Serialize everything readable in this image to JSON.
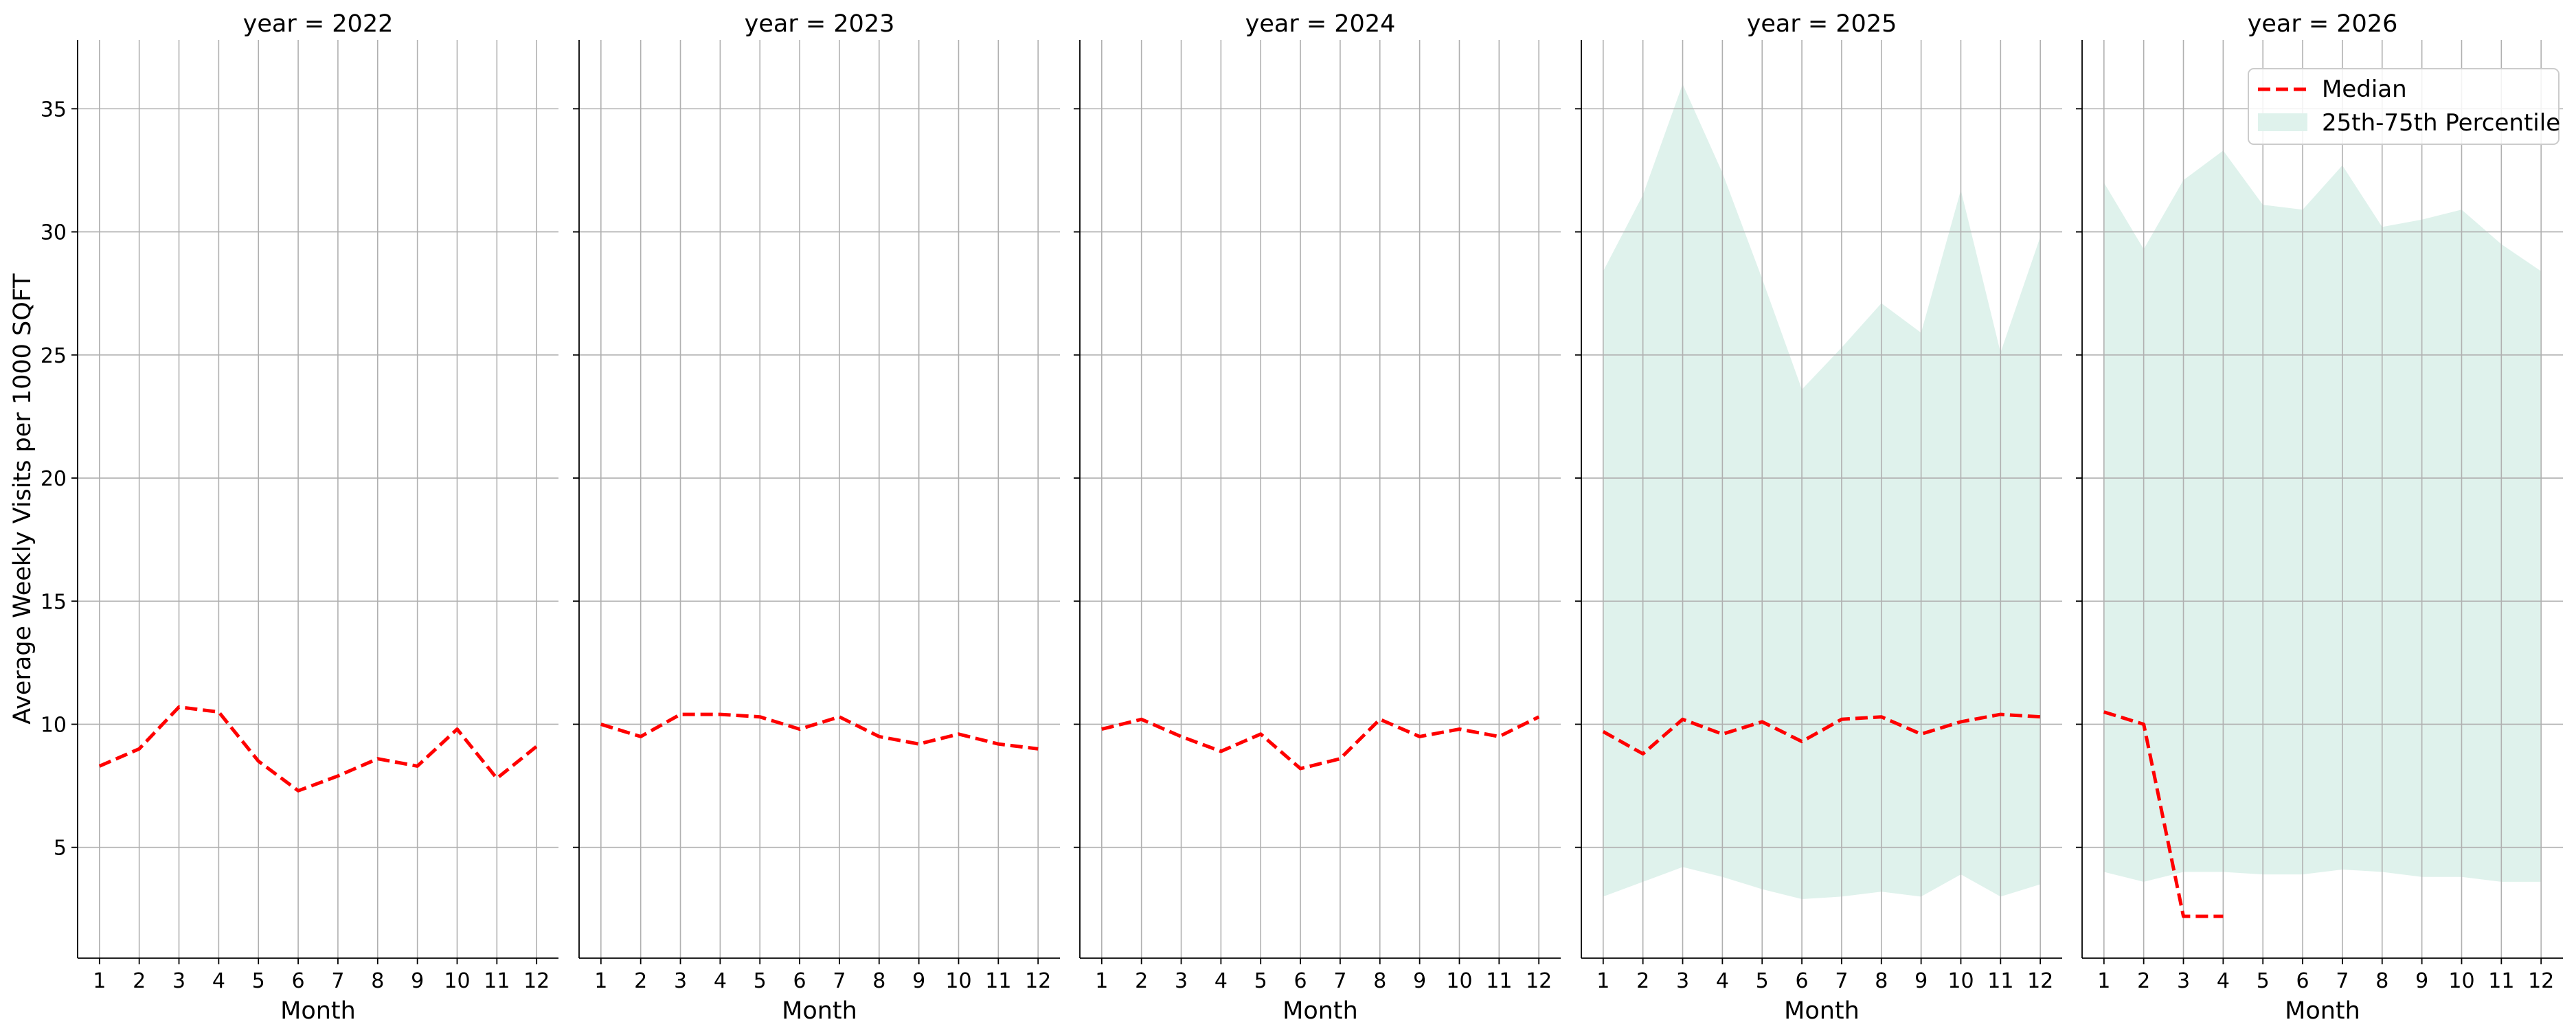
{
  "chart_data": {
    "type": "line",
    "ylabel": "Average Weekly Visits per 1000 SQFT",
    "xlabel": "Month",
    "x": [
      1,
      2,
      3,
      4,
      5,
      6,
      7,
      8,
      9,
      10,
      11,
      12
    ],
    "x_ticks": [
      "1",
      "2",
      "3",
      "4",
      "5",
      "6",
      "7",
      "8",
      "9",
      "10",
      "11",
      "12"
    ],
    "xlim": [
      0.45,
      12.55
    ],
    "ylim": [
      0.5,
      37.8
    ],
    "y_ticks": [
      5,
      10,
      15,
      20,
      25,
      30,
      35
    ],
    "y_tick_labels": [
      "5",
      "10",
      "15",
      "20",
      "25",
      "30",
      "35"
    ],
    "grid": true,
    "legend": {
      "placement": "top-right",
      "entries": [
        "Median",
        "25th-75th Percentile"
      ]
    },
    "colors": {
      "median": "#ff0000",
      "band": "#dff2ec",
      "grid": "#b0b0b0",
      "axis": "#000000"
    },
    "panels": [
      {
        "title": "year = 2022",
        "median": [
          8.3,
          9.0,
          10.7,
          10.5,
          8.5,
          7.3,
          7.9,
          8.6,
          8.3,
          9.8,
          7.8,
          9.1
        ],
        "p25": null,
        "p75": null
      },
      {
        "title": "year = 2023",
        "median": [
          10.0,
          9.5,
          10.4,
          10.4,
          10.3,
          9.8,
          10.3,
          9.5,
          9.2,
          9.6,
          9.2,
          9.0
        ],
        "p25": null,
        "p75": null
      },
      {
        "title": "year = 2024",
        "median": [
          9.8,
          10.2,
          9.5,
          8.9,
          9.6,
          8.2,
          8.6,
          10.2,
          9.5,
          9.8,
          9.5,
          10.3
        ],
        "p25": null,
        "p75": null
      },
      {
        "title": "year = 2025",
        "median": [
          9.7,
          8.8,
          10.2,
          9.6,
          10.1,
          9.3,
          10.2,
          10.3,
          9.6,
          10.1,
          10.4,
          10.3
        ],
        "p25": [
          3.0,
          3.6,
          4.2,
          3.8,
          3.3,
          2.9,
          3.0,
          3.2,
          3.0,
          3.9,
          3.0,
          3.5
        ],
        "p75": [
          28.4,
          31.5,
          36.0,
          32.4,
          28.1,
          23.6,
          25.3,
          27.1,
          25.9,
          31.7,
          25.1,
          29.8
        ]
      },
      {
        "title": "year = 2026",
        "median": [
          10.5,
          10.0,
          2.2,
          2.2,
          null,
          null,
          null,
          null,
          null,
          null,
          null,
          null
        ],
        "p25": [
          4.0,
          3.6,
          4.0,
          4.0,
          3.9,
          3.9,
          4.1,
          4.0,
          3.8,
          3.8,
          3.6,
          3.6
        ],
        "p75": [
          32.0,
          29.3,
          32.1,
          33.3,
          31.1,
          30.9,
          32.7,
          30.2,
          30.5,
          30.9,
          29.5,
          28.4
        ]
      }
    ]
  }
}
